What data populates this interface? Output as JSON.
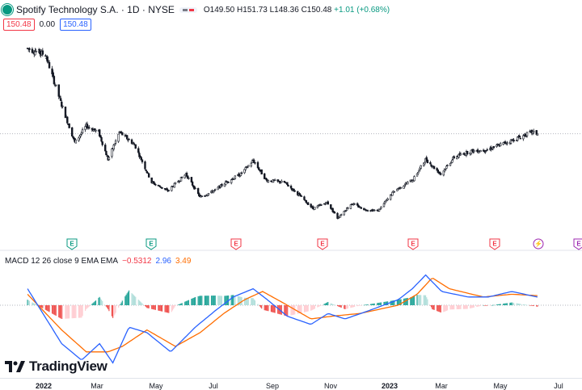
{
  "header": {
    "title": "Spotify Technology S.A. · 1D · NYSE",
    "open": "O149.50",
    "high": "H151.73",
    "low": "L148.36",
    "close": "C150.48",
    "change": "+1.01 (+0.68%)"
  },
  "price_row": {
    "bid": "150.48",
    "spread": "0.00",
    "ask": "150.48"
  },
  "macd_legend": {
    "label": "MACD 12 26 close 9 EMA EMA",
    "hist": "−0.5312",
    "macd": "2.96",
    "signal": "3.49"
  },
  "brand": {
    "name": "TradingView"
  },
  "colors": {
    "up": "#089981",
    "down": "#f23645",
    "candle": "#131722",
    "macd": "#2962ff",
    "signal": "#ff6d00",
    "hist_up": "#26a69a",
    "hist_down": "#ef5350",
    "earnings_up": "#089981",
    "earnings_down": "#f23645",
    "dividend": "#9c27b0"
  },
  "x_axis_labels": [
    {
      "text": "2022",
      "bold": true
    },
    {
      "text": "Mar",
      "bold": false
    },
    {
      "text": "May",
      "bold": false
    },
    {
      "text": "Jul",
      "bold": false
    },
    {
      "text": "Sep",
      "bold": false
    },
    {
      "text": "Nov",
      "bold": false
    },
    {
      "text": "2023",
      "bold": true
    },
    {
      "text": "Mar",
      "bold": false
    },
    {
      "text": "May",
      "bold": false
    },
    {
      "text": "Jul",
      "bold": false
    }
  ],
  "events": [
    {
      "label": "E",
      "kind": "earnings_up"
    },
    {
      "label": "E",
      "kind": "earnings_up"
    },
    {
      "label": "E",
      "kind": "earnings_down"
    },
    {
      "label": "E",
      "kind": "earnings_down"
    },
    {
      "label": "E",
      "kind": "earnings_down"
    },
    {
      "label": "E",
      "kind": "earnings_down"
    },
    {
      "label": "⚡",
      "kind": "split"
    },
    {
      "label": "E",
      "kind": "earnings_future"
    }
  ],
  "chart_data": {
    "type": "candlestick",
    "interval": "1D",
    "last_price": 150.48,
    "price_series_approx": [
      [
        "2021-12-15",
        232
      ],
      [
        "2022-01-03",
        226
      ],
      [
        "2022-01-20",
        178
      ],
      [
        "2022-02-03",
        142
      ],
      [
        "2022-02-15",
        158
      ],
      [
        "2022-02-28",
        152
      ],
      [
        "2022-03-10",
        126
      ],
      [
        "2022-03-22",
        152
      ],
      [
        "2022-04-07",
        140
      ],
      [
        "2022-04-25",
        104
      ],
      [
        "2022-05-12",
        96
      ],
      [
        "2022-05-31",
        112
      ],
      [
        "2022-06-15",
        90
      ],
      [
        "2022-06-30",
        96
      ],
      [
        "2022-07-12",
        104
      ],
      [
        "2022-07-28",
        112
      ],
      [
        "2022-08-10",
        125
      ],
      [
        "2022-08-24",
        106
      ],
      [
        "2022-09-12",
        104
      ],
      [
        "2022-09-30",
        90
      ],
      [
        "2022-10-12",
        79
      ],
      [
        "2022-10-27",
        85
      ],
      [
        "2022-11-07",
        70
      ],
      [
        "2022-11-22",
        84
      ],
      [
        "2022-12-06",
        78
      ],
      [
        "2022-12-20",
        77
      ],
      [
        "2023-01-06",
        96
      ],
      [
        "2023-01-26",
        107
      ],
      [
        "2023-02-08",
        126
      ],
      [
        "2023-02-24",
        112
      ],
      [
        "2023-03-10",
        128
      ],
      [
        "2023-03-28",
        134
      ],
      [
        "2023-04-13",
        135
      ],
      [
        "2023-04-28",
        140
      ],
      [
        "2023-05-15",
        146
      ],
      [
        "2023-05-31",
        152
      ],
      [
        "2023-06-06",
        150.48
      ]
    ],
    "macd_line_approx": [
      [
        "2021-12-15",
        6
      ],
      [
        "2022-01-20",
        -14
      ],
      [
        "2022-02-10",
        -20
      ],
      [
        "2022-03-01",
        -14
      ],
      [
        "2022-03-15",
        -21
      ],
      [
        "2022-04-01",
        -8
      ],
      [
        "2022-04-20",
        -10
      ],
      [
        "2022-05-15",
        -17
      ],
      [
        "2022-06-10",
        -8
      ],
      [
        "2022-07-01",
        -2
      ],
      [
        "2022-07-20",
        3
      ],
      [
        "2022-08-10",
        6
      ],
      [
        "2022-08-25",
        2
      ],
      [
        "2022-09-15",
        -4
      ],
      [
        "2022-10-10",
        -7
      ],
      [
        "2022-10-28",
        -3
      ],
      [
        "2022-11-15",
        -5
      ],
      [
        "2022-12-10",
        -2
      ],
      [
        "2023-01-10",
        2
      ],
      [
        "2023-01-25",
        6
      ],
      [
        "2023-02-08",
        11
      ],
      [
        "2023-02-25",
        5
      ],
      [
        "2023-03-25",
        3
      ],
      [
        "2023-04-15",
        3
      ],
      [
        "2023-05-10",
        5
      ],
      [
        "2023-06-06",
        2.96
      ]
    ],
    "signal_line_approx": [
      [
        "2021-12-15",
        4
      ],
      [
        "2022-01-20",
        -9
      ],
      [
        "2022-02-15",
        -17
      ],
      [
        "2022-03-10",
        -17
      ],
      [
        "2022-03-25",
        -15
      ],
      [
        "2022-04-20",
        -9
      ],
      [
        "2022-05-20",
        -15
      ],
      [
        "2022-06-15",
        -10
      ],
      [
        "2022-07-10",
        -3
      ],
      [
        "2022-08-01",
        2
      ],
      [
        "2022-08-20",
        5
      ],
      [
        "2022-09-10",
        1
      ],
      [
        "2022-10-10",
        -5
      ],
      [
        "2022-11-01",
        -4
      ],
      [
        "2022-12-01",
        -3
      ],
      [
        "2023-01-10",
        0
      ],
      [
        "2023-01-30",
        4
      ],
      [
        "2023-02-15",
        10
      ],
      [
        "2023-03-05",
        6
      ],
      [
        "2023-04-10",
        3
      ],
      [
        "2023-05-10",
        4
      ],
      [
        "2023-06-06",
        3.49
      ]
    ]
  }
}
